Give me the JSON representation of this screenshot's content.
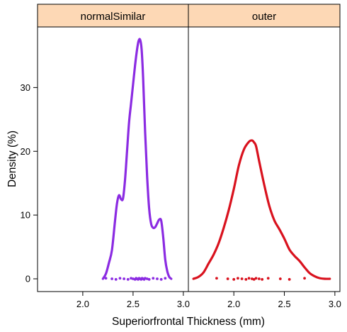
{
  "chart_data": {
    "type": "line",
    "xlabel": "Superiorfrontal Thickness (mm)",
    "ylabel": "Density (%)",
    "xlim": [
      1.55,
      3.05
    ],
    "ylim": [
      -2,
      39.5
    ],
    "xticks": [
      "2.0",
      "2.5",
      "3.0"
    ],
    "yticks": [
      "0",
      "10",
      "20",
      "30"
    ],
    "grid": false,
    "strip_color": "#FDD8B5",
    "panels": [
      {
        "name": "normalSimilar",
        "color": "#8B2BE2",
        "curve": {
          "x": [
            2.2,
            2.23,
            2.26,
            2.29,
            2.32,
            2.34,
            2.36,
            2.38,
            2.4,
            2.42,
            2.44,
            2.46,
            2.48,
            2.5,
            2.52,
            2.54,
            2.555,
            2.57,
            2.585,
            2.6,
            2.62,
            2.64,
            2.66,
            2.68,
            2.7,
            2.72,
            2.74,
            2.76,
            2.78,
            2.8,
            2.82,
            2.84,
            2.86,
            2.88
          ],
          "y": [
            0,
            0.8,
            2.5,
            4.5,
            9,
            11.8,
            13.1,
            12.5,
            12.6,
            15.5,
            20,
            24.5,
            27.5,
            30.5,
            33.5,
            36,
            37.3,
            37.5,
            36,
            31.5,
            23,
            16,
            11,
            8.6,
            8.0,
            8.1,
            8.7,
            9.3,
            9.1,
            6.5,
            3,
            1.2,
            0.3,
            0
          ]
        },
        "rug": [
          2.23,
          2.29,
          2.33,
          2.37,
          2.41,
          2.45,
          2.48,
          2.5,
          2.52,
          2.53,
          2.54,
          2.55,
          2.56,
          2.57,
          2.58,
          2.59,
          2.6,
          2.61,
          2.62,
          2.64,
          2.66,
          2.7,
          2.74,
          2.78,
          2.82
        ]
      },
      {
        "name": "outer",
        "color": "#D9121E",
        "curve": {
          "x": [
            1.6,
            1.65,
            1.7,
            1.75,
            1.8,
            1.85,
            1.9,
            1.95,
            2.0,
            2.05,
            2.1,
            2.15,
            2.18,
            2.2,
            2.22,
            2.25,
            2.3,
            2.35,
            2.4,
            2.45,
            2.5,
            2.55,
            2.6,
            2.65,
            2.7,
            2.75,
            2.8,
            2.85,
            2.9,
            2.95
          ],
          "y": [
            0,
            0.3,
            1.0,
            2.4,
            3.8,
            5.6,
            8.0,
            10.8,
            14.1,
            17.8,
            20.3,
            21.5,
            21.7,
            21.4,
            20.8,
            18.5,
            14.8,
            11.5,
            9.2,
            7.8,
            6.3,
            4.6,
            3.6,
            2.8,
            1.8,
            0.9,
            0.4,
            0.1,
            0,
            0
          ]
        },
        "rug": [
          1.83,
          1.94,
          2.0,
          2.04,
          2.08,
          2.12,
          2.15,
          2.18,
          2.2,
          2.22,
          2.25,
          2.28,
          2.34,
          2.46,
          2.55,
          2.7
        ]
      }
    ]
  }
}
